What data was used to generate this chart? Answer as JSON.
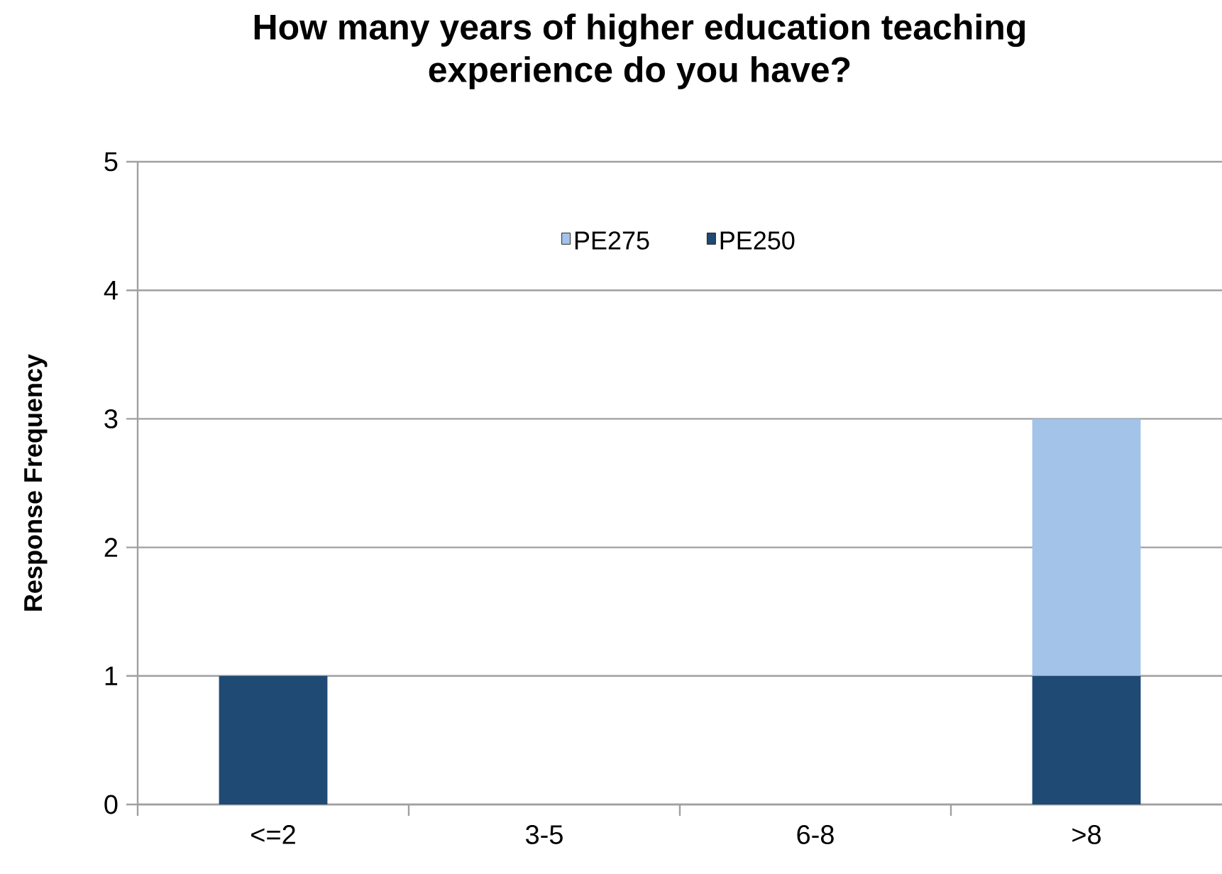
{
  "chart_data": {
    "type": "bar",
    "title": "How many years of higher education teaching experience do you have?",
    "ylabel": "Response Frequency",
    "categories": [
      "<=2",
      "3-5",
      "6-8",
      ">8"
    ],
    "series": [
      {
        "name": "PE250",
        "color": "#1f4a74",
        "values": [
          1,
          0,
          0,
          1
        ]
      },
      {
        "name": "PE275",
        "color": "#a3c3e9",
        "values": [
          0,
          0,
          0,
          2
        ]
      }
    ],
    "stacked": true,
    "ylim": [
      0,
      5
    ],
    "yticks": [
      0,
      1,
      2,
      3,
      4,
      5
    ],
    "grid": "y",
    "legend": "top"
  }
}
